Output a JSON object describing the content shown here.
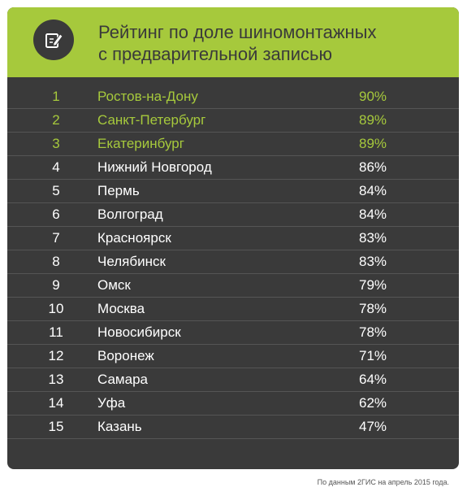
{
  "title_line1": "Рейтинг по доле шиномонтажных",
  "title_line2": "с предварительной записью",
  "icon": "edit-note-icon",
  "footnote": "По данным 2ГИС на апрель 2015 года.",
  "colors": {
    "accent": "#a6c93c",
    "background": "#3a3a3a",
    "row_divider": "#555555",
    "text": "#ffffff"
  },
  "chart_data": {
    "type": "table",
    "title": "Рейтинг по доле шиномонтажных с предварительной записью",
    "highlighted_top": 3,
    "rows": [
      {
        "rank": "1",
        "city": "Ростов-на-Дону",
        "value": "90%"
      },
      {
        "rank": "2",
        "city": "Санкт-Петербург",
        "value": "89%"
      },
      {
        "rank": "3",
        "city": "Екатеринбург",
        "value": "89%"
      },
      {
        "rank": "4",
        "city": "Нижний Новгород",
        "value": "86%"
      },
      {
        "rank": "5",
        "city": "Пермь",
        "value": "84%"
      },
      {
        "rank": "6",
        "city": "Волгоград",
        "value": "84%"
      },
      {
        "rank": "7",
        "city": "Красноярск",
        "value": "83%"
      },
      {
        "rank": "8",
        "city": "Челябинск",
        "value": "83%"
      },
      {
        "rank": "9",
        "city": "Омск",
        "value": "79%"
      },
      {
        "rank": "10",
        "city": "Москва",
        "value": "78%"
      },
      {
        "rank": "11",
        "city": "Новосибирск",
        "value": "78%"
      },
      {
        "rank": "12",
        "city": "Воронеж",
        "value": "71%"
      },
      {
        "rank": "13",
        "city": "Самара",
        "value": "64%"
      },
      {
        "rank": "14",
        "city": "Уфа",
        "value": "62%"
      },
      {
        "rank": "15",
        "city": "Казань",
        "value": "47%"
      }
    ]
  }
}
